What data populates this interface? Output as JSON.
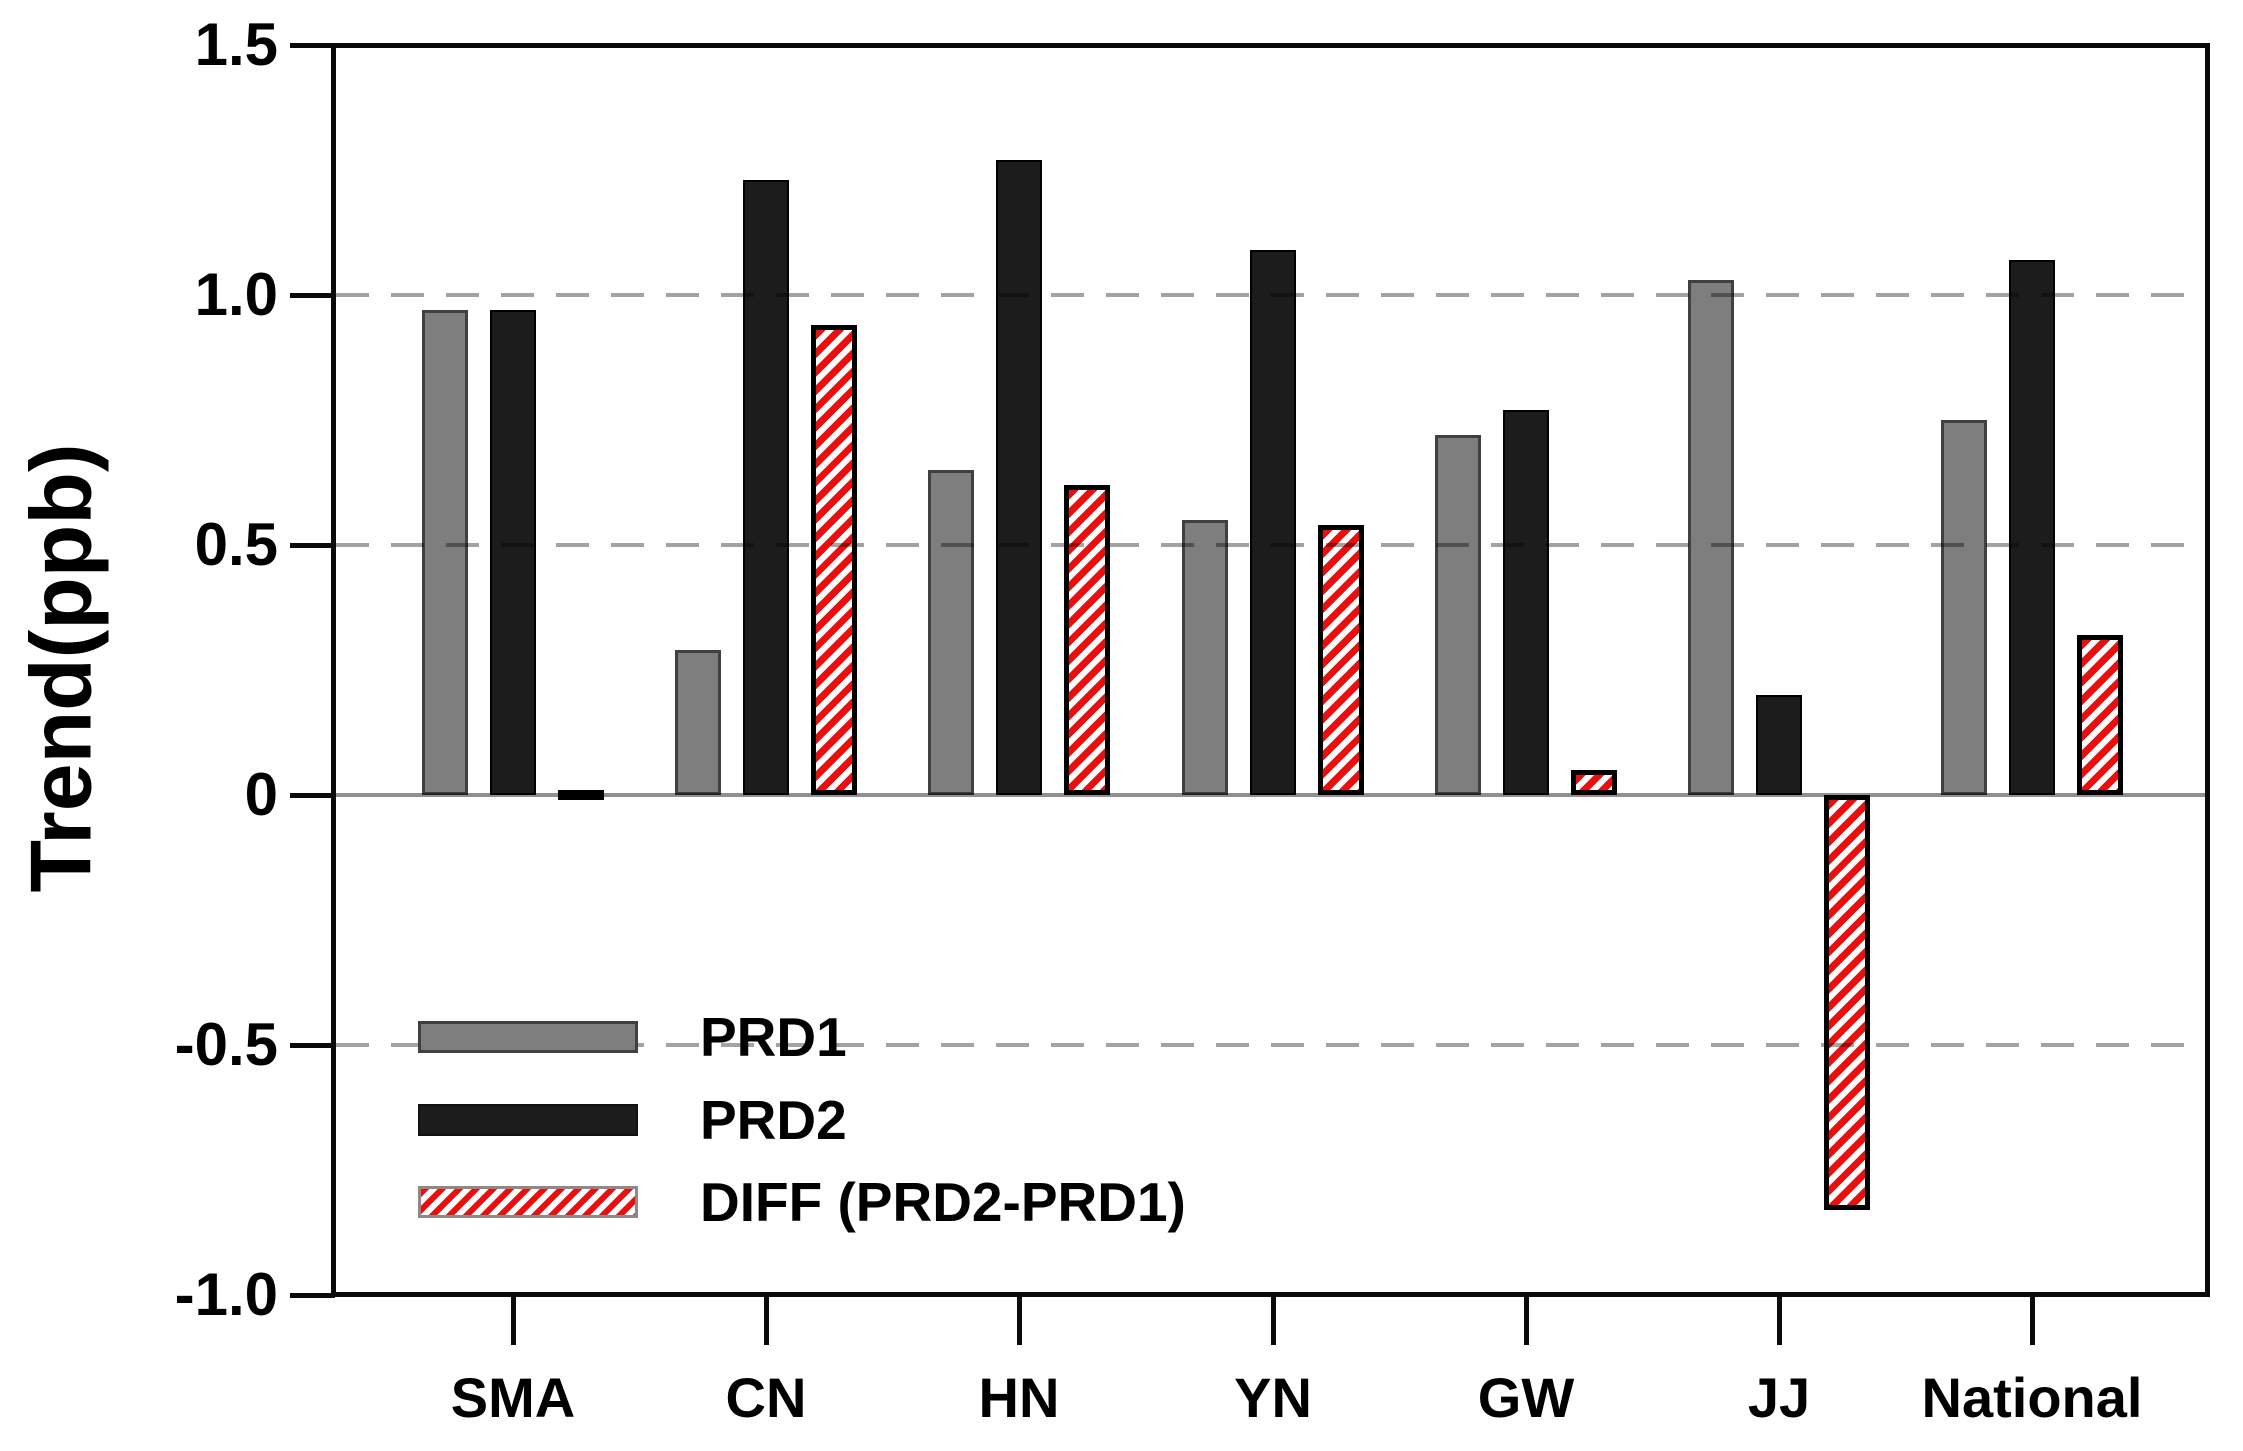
{
  "chart_data": {
    "type": "bar",
    "ylabel": "Trend(ppb)",
    "categories": [
      "SMA",
      "CN",
      "HN",
      "YN",
      "GW",
      "JJ",
      "National"
    ],
    "series": [
      {
        "name": "PRD1",
        "color": "#7e7e7e",
        "style": "solid-gray",
        "values": [
          0.97,
          0.29,
          0.65,
          0.55,
          0.72,
          1.03,
          0.75
        ]
      },
      {
        "name": "PRD2",
        "color": "#1c1c1c",
        "style": "solid-black",
        "values": [
          0.97,
          1.23,
          1.27,
          1.09,
          0.77,
          0.2,
          1.07
        ]
      },
      {
        "name": "DIFF (PRD2-PRD1)",
        "color": "#e90f0f",
        "style": "red-diagonal-hatch",
        "values": [
          0.01,
          0.94,
          0.62,
          0.54,
          0.05,
          -0.83,
          0.32
        ]
      }
    ],
    "ylim": [
      -1.0,
      1.5
    ],
    "yticks": [
      1.5,
      1.0,
      0.5,
      0,
      -0.5,
      -1.0
    ],
    "ytick_labels": [
      "1.5",
      "1.0",
      "0.5",
      "0",
      "-0.5",
      "-1.0"
    ],
    "gridline_values": [
      1.0,
      0.5,
      -0.5
    ],
    "grid": "dashed",
    "zero_line": true,
    "legend_position": "inside-lower-left",
    "colors": {
      "background": "#ffffff",
      "frame": "#0a0a0a",
      "gridline": "#a3a3a3",
      "zero_line": "#909090",
      "hatch_red": "#e90f0f",
      "bar_gray": "#7e7e7e",
      "bar_black": "#1c1c1c"
    }
  }
}
